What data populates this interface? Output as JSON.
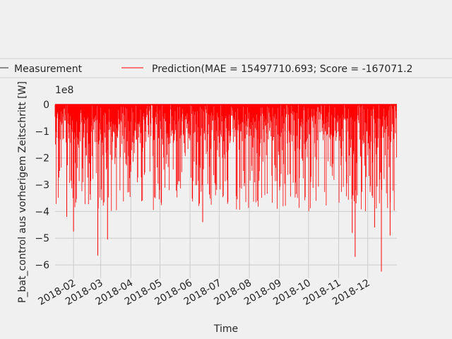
{
  "chart_data": {
    "type": "line",
    "xlabel": "Time",
    "ylabel": "P_bat_control aus vorherigem Zeitschritt [W]",
    "y_multiplier_label": "1e8",
    "x_range": [
      "2018-01-13",
      "2018-12-31"
    ],
    "ylim": [
      -6.5,
      0
    ],
    "y_ticks": [
      0,
      -1,
      -2,
      -3,
      -4,
      -5,
      -6
    ],
    "y_tick_labels": [
      "0",
      "−1",
      "−2",
      "−3",
      "−4",
      "−5",
      "−6"
    ],
    "x_ticks": [
      "2018-02-01",
      "2018-03-01",
      "2018-04-01",
      "2018-05-01",
      "2018-06-01",
      "2018-07-01",
      "2018-08-01",
      "2018-09-01",
      "2018-10-01",
      "2018-11-01",
      "2018-12-01"
    ],
    "x_tick_labels": [
      "2018-02",
      "2018-03",
      "2018-04",
      "2018-05",
      "2018-06",
      "2018-07",
      "2018-08",
      "2018-09",
      "2018-10",
      "2018-11",
      "2018-12"
    ],
    "grid": true,
    "legend_placement": "top-center, above plot",
    "series": [
      {
        "name": "Measurement",
        "color": "#262626",
        "values": []
      },
      {
        "name": "Prediction(MAE = 15497710.693; Score = -167071.2",
        "color": "#ff0000",
        "typical_min": -4.0,
        "spikes": [
          {
            "x": "2018-01-25",
            "y": -4.2
          },
          {
            "x": "2018-02-01",
            "y": -4.75
          },
          {
            "x": "2018-02-26",
            "y": -5.65
          },
          {
            "x": "2018-03-08",
            "y": -5.05
          },
          {
            "x": "2018-06-14",
            "y": -4.4
          },
          {
            "x": "2018-11-15",
            "y": -4.8
          },
          {
            "x": "2018-11-18",
            "y": -5.7
          },
          {
            "x": "2018-12-08",
            "y": -4.6
          },
          {
            "x": "2018-12-15",
            "y": -6.25
          },
          {
            "x": "2018-12-24",
            "y": -4.9
          }
        ]
      }
    ]
  }
}
